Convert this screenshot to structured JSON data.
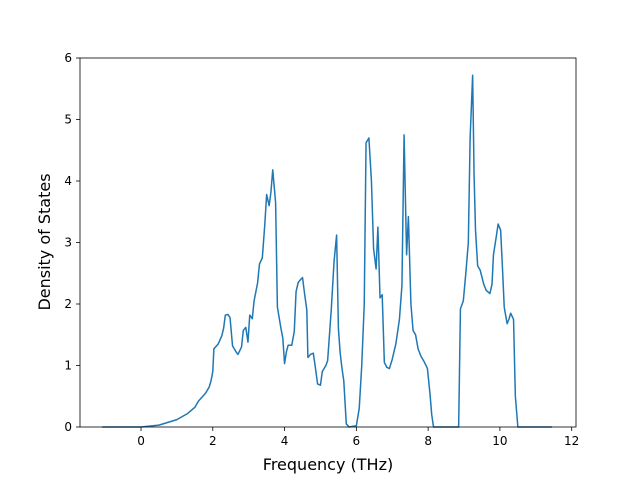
{
  "chart_data": {
    "type": "line",
    "x_label": "Frequency (THz)",
    "y_label": "Density of States",
    "xlim": [
      -1.7,
      12.12
    ],
    "ylim": [
      0,
      6
    ],
    "xticks": [
      0,
      2,
      4,
      6,
      8,
      10,
      12
    ],
    "yticks": [
      0,
      1,
      2,
      3,
      4,
      5,
      6
    ],
    "grid": false,
    "series": [
      {
        "color": "#1f77b4",
        "x": [
          -1.08,
          0,
          0.5,
          1,
          1.3,
          1.5,
          1.6,
          1.8,
          1.9,
          1.95,
          2.0,
          2.03,
          2.15,
          2.25,
          2.3,
          2.35,
          2.42,
          2.48,
          2.55,
          2.65,
          2.7,
          2.8,
          2.85,
          2.92,
          2.98,
          3.03,
          3.1,
          3.15,
          3.25,
          3.3,
          3.38,
          3.45,
          3.5,
          3.57,
          3.62,
          3.67,
          3.75,
          3.8,
          3.9,
          3.95,
          4.0,
          4.05,
          4.1,
          4.2,
          4.27,
          4.32,
          4.38,
          4.45,
          4.5,
          4.55,
          4.62,
          4.65,
          4.72,
          4.8,
          4.85,
          4.92,
          5.0,
          5.05,
          5.15,
          5.2,
          5.3,
          5.38,
          5.45,
          5.5,
          5.55,
          5.6,
          5.65,
          5.72,
          5.8,
          6.0,
          6.08,
          6.15,
          6.22,
          6.27,
          6.35,
          6.42,
          6.48,
          6.55,
          6.6,
          6.66,
          6.72,
          6.78,
          6.85,
          6.92,
          7.0,
          7.1,
          7.2,
          7.27,
          7.33,
          7.4,
          7.45,
          7.52,
          7.58,
          7.65,
          7.72,
          7.8,
          7.9,
          7.98,
          8.05,
          8.1,
          8.15,
          8.85,
          8.9,
          8.98,
          9.05,
          9.12,
          9.17,
          9.24,
          9.28,
          9.32,
          9.38,
          9.45,
          9.55,
          9.62,
          9.72,
          9.78,
          9.82,
          9.9,
          9.95,
          10.02,
          10.07,
          10.12,
          10.2,
          10.25,
          10.3,
          10.38,
          10.43,
          10.5,
          11.45
        ],
        "values": [
          0,
          0,
          0.03,
          0.12,
          0.22,
          0.32,
          0.42,
          0.55,
          0.65,
          0.75,
          0.9,
          1.27,
          1.35,
          1.48,
          1.6,
          1.82,
          1.83,
          1.78,
          1.32,
          1.22,
          1.18,
          1.3,
          1.57,
          1.62,
          1.38,
          1.82,
          1.76,
          2.05,
          2.35,
          2.65,
          2.75,
          3.3,
          3.78,
          3.6,
          3.82,
          4.18,
          3.65,
          1.95,
          1.6,
          1.45,
          1.03,
          1.22,
          1.33,
          1.33,
          1.55,
          2.2,
          2.35,
          2.4,
          2.43,
          2.2,
          1.9,
          1.13,
          1.18,
          1.2,
          1.0,
          0.7,
          0.68,
          0.9,
          1.0,
          1.08,
          1.9,
          2.7,
          3.12,
          1.6,
          1.2,
          0.95,
          0.75,
          0.05,
          0,
          0.02,
          0.3,
          1.0,
          2.0,
          4.62,
          4.7,
          4.0,
          2.9,
          2.57,
          3.25,
          2.1,
          2.15,
          1.05,
          0.97,
          0.95,
          1.1,
          1.35,
          1.75,
          2.3,
          4.75,
          2.8,
          3.42,
          2.0,
          1.57,
          1.5,
          1.27,
          1.15,
          1.05,
          0.95,
          0.55,
          0.2,
          0,
          0,
          1.92,
          2.05,
          2.5,
          3.0,
          4.7,
          5.72,
          4.1,
          3.2,
          2.62,
          2.55,
          2.32,
          2.22,
          2.17,
          2.32,
          2.8,
          3.1,
          3.3,
          3.2,
          2.6,
          1.95,
          1.68,
          1.75,
          1.85,
          1.75,
          0.5,
          0,
          0
        ]
      }
    ]
  }
}
